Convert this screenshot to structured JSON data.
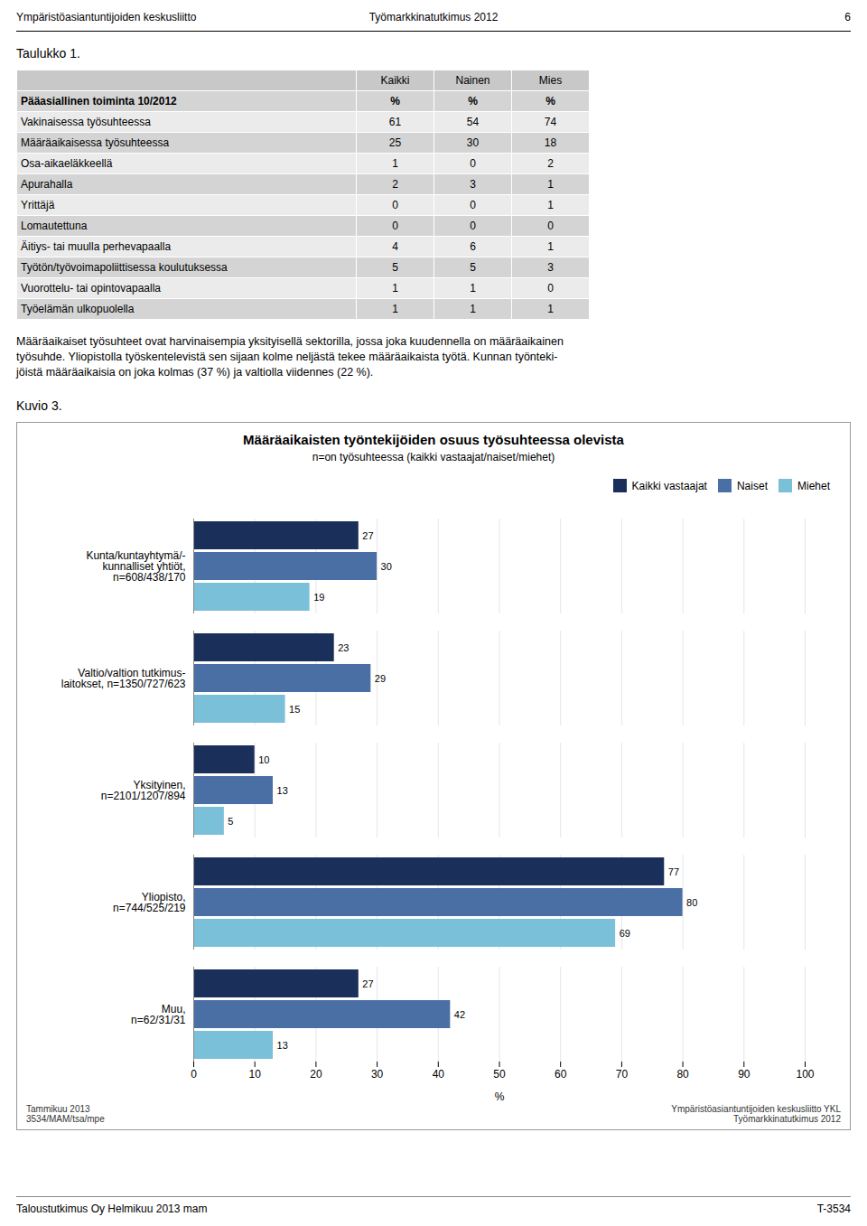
{
  "chart_data": [
    {
      "type": "table",
      "title": "Taulukko 1.",
      "columns": [
        null,
        "Kaikki",
        "Nainen",
        "Mies"
      ],
      "rows": [
        [
          "Pääasiallinen toiminta 10/2012",
          "%",
          "%",
          "%"
        ],
        [
          "Vakinaisessa työsuhteessa",
          "61",
          "54",
          "74"
        ],
        [
          "Määräaikaisessa työsuhteessa",
          "25",
          "30",
          "18"
        ],
        [
          "Osa-aikaeläkkeellä",
          "1",
          "0",
          "2"
        ],
        [
          "Apurahalla",
          "2",
          "3",
          "1"
        ],
        [
          "Yrittäjä",
          "0",
          "0",
          "1"
        ],
        [
          "Lomautettuna",
          "0",
          "0",
          "0"
        ],
        [
          "Äitiys- tai muulla perhevapaalla",
          "4",
          "6",
          "1"
        ],
        [
          "Työtön/työvoimapoliittisessa koulutuksessa",
          "5",
          "5",
          "3"
        ],
        [
          "Vuorottelu- tai opintovapaalla",
          "1",
          "1",
          "0"
        ],
        [
          "Työelämän ulkopuolella",
          "1",
          "1",
          "1"
        ]
      ],
      "annotations": [
        "Ympäristöasiantuntijoiden keskusliitto",
        "Työmarkkinatutkimus 2012",
        "6",
        "Määräaikaiset työsuhteet ovat harvinaisempia yksityisellä sektorilla, jossa joka kuudennella on määräaikainen",
        "työsuhde. Yliopistolla työskentelevistä sen sijaan kolme neljästä tekee määräaikaista työtä. Kunnan työnteki-",
        "jöistä määräaikaisia on joka kolmas (37 %) ja valtiolla viidennes (22 %)."
      ]
    },
    {
      "type": "bar",
      "orientation": "horizontal",
      "title": "Määräaikaisten työntekijöiden osuus työsuhteessa olevista",
      "subtitle": "n=on työsuhteessa (kaikki vastaajat/naiset/miehet)",
      "xlabel": "%",
      "categories": [
        "Kunta/kuntayhtymä/-\nkunnalliset yhtiöt,\nn=608/438/170",
        "Valtio/valtion tutkimus-\nlaitokset, n=1350/727/623",
        "Yksityinen,\nn=2101/1207/894",
        "Yliopisto,\nn=744/525/219",
        "Muu,\nn=62/31/31"
      ],
      "series": [
        {
          "name": "Kaikki vastaajat",
          "color": "#1a2f5a",
          "values": [
            27,
            23,
            10,
            77,
            27
          ]
        },
        {
          "name": "Naiset",
          "color": "#4a6fa5",
          "values": [
            30,
            29,
            13,
            80,
            42
          ]
        },
        {
          "name": "Miehet",
          "color": "#7ac0d8",
          "values": [
            19,
            15,
            5,
            69,
            13
          ]
        }
      ],
      "xlim": [
        0,
        100
      ],
      "xticks": [
        0,
        10,
        20,
        30,
        40,
        50,
        60,
        70,
        80,
        90,
        100
      ],
      "grid": true,
      "data_labels": true,
      "legend": "right",
      "annotations": [
        "Kuvio 3.",
        "Tammikuu 2013\n3534/MAM/tsa/mpe",
        "Ympäristöasiantuntijoiden keskusliitto YKL\nTyömarkkinatutkimus 2012",
        "Taloustutkimus Oy Helmikuu 2013 mam",
        "T-3534"
      ]
    }
  ]
}
